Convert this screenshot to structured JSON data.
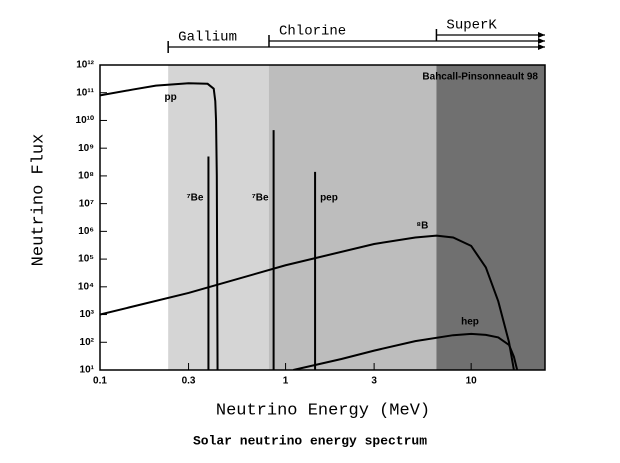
{
  "chart_data": {
    "type": "line",
    "title": "Solar neutrino energy spectrum",
    "x_label": "Neutrino Energy (MeV)",
    "y_label": "Neutrino Flux",
    "annotation": "Bahcall-Pinsonneault 98",
    "log_x": true,
    "log_y": true,
    "xlim": [
      0.1,
      25
    ],
    "ylim": [
      10,
      1000000000000.0
    ],
    "xticks": [
      0.1,
      0.3,
      1,
      3,
      10
    ],
    "yticks": [
      {
        "value": 10,
        "label": "10¹"
      },
      {
        "value": 100,
        "label": "10²"
      },
      {
        "value": 1000,
        "label": "10³"
      },
      {
        "value": 10000.0,
        "label": "10⁴"
      },
      {
        "value": 100000.0,
        "label": "10⁵"
      },
      {
        "value": 1000000.0,
        "label": "10⁶"
      },
      {
        "value": 10000000.0,
        "label": "10⁷"
      },
      {
        "value": 100000000.0,
        "label": "10⁸"
      },
      {
        "value": 1000000000.0,
        "label": "10⁹"
      },
      {
        "value": 10000000000.0,
        "label": "10¹⁰"
      },
      {
        "value": 100000000000.0,
        "label": "10¹¹"
      },
      {
        "value": 1000000000000.0,
        "label": "10¹²"
      }
    ],
    "regions": [
      {
        "name": "Gallium",
        "start": 0.233,
        "color": "#d5d5d5"
      },
      {
        "name": "Chlorine",
        "start": 0.814,
        "color": "#bdbdbd"
      },
      {
        "name": "SuperK",
        "start": 6.5,
        "color": "#707070"
      }
    ],
    "series": [
      {
        "name": "pp",
        "color": "#000000",
        "x": [
          0.1,
          0.15,
          0.2,
          0.3,
          0.38,
          0.41,
          0.418,
          0.422,
          0.426,
          0.43
        ],
        "values": [
          80000000000.0,
          130000000000.0,
          180000000000.0,
          220000000000.0,
          210000000000.0,
          140000000000.0,
          50000000000.0,
          10000000000.0,
          100000000.0,
          10
        ]
      },
      {
        "name": "⁸B",
        "color": "#000000",
        "x": [
          0.1,
          0.3,
          1,
          3,
          5,
          6.5,
          8,
          10,
          12,
          14,
          16,
          17
        ],
        "values": [
          1000,
          6000,
          60000.0,
          350000.0,
          600000.0,
          700000.0,
          600000.0,
          300000.0,
          50000.0,
          3000,
          100,
          10
        ]
      },
      {
        "name": "hep",
        "color": "#000000",
        "x": [
          1.1,
          2,
          3,
          5,
          8,
          10,
          12,
          14,
          16,
          17,
          17.7
        ],
        "values": [
          10,
          25,
          50,
          110,
          180,
          200,
          185,
          150,
          80,
          30,
          10
        ]
      }
    ],
    "lines": [
      {
        "name": "⁷Be",
        "energy": 0.384,
        "flux": 500000000.0
      },
      {
        "name": "⁷Be",
        "energy": 0.862,
        "flux": 4500000000.0
      },
      {
        "name": "pep",
        "energy": 1.442,
        "flux": 140000000.0
      }
    ]
  }
}
